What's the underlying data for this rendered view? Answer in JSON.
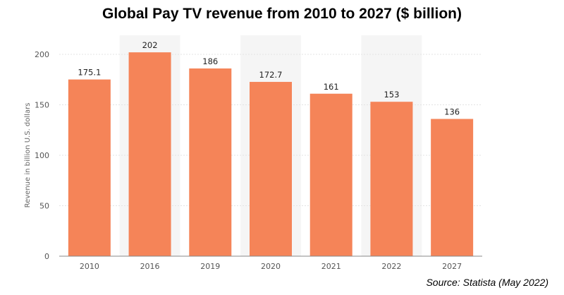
{
  "title": "Global Pay TV revenue from 2010 to 2027 ($ billion)",
  "source": "Source: Statista (May 2022)",
  "colors": {
    "bar": "#f58458",
    "band": "#f5f5f5",
    "grid": "#e3e3e3",
    "axis": "#888888"
  },
  "chart_data": {
    "type": "bar",
    "categories": [
      "2010",
      "2016",
      "2019",
      "2020",
      "2021",
      "2022",
      "2027"
    ],
    "values": [
      175.1,
      202,
      186,
      172.7,
      161,
      153,
      136
    ],
    "value_labels": [
      "175.1",
      "202",
      "186",
      "172.7",
      "161",
      "153",
      "136"
    ],
    "ylabel": "Revenue in billion U.S. dollars",
    "ylim": [
      0,
      200
    ],
    "yticks": [
      "0",
      "50",
      "100",
      "150",
      "200"
    ],
    "grid": true
  }
}
